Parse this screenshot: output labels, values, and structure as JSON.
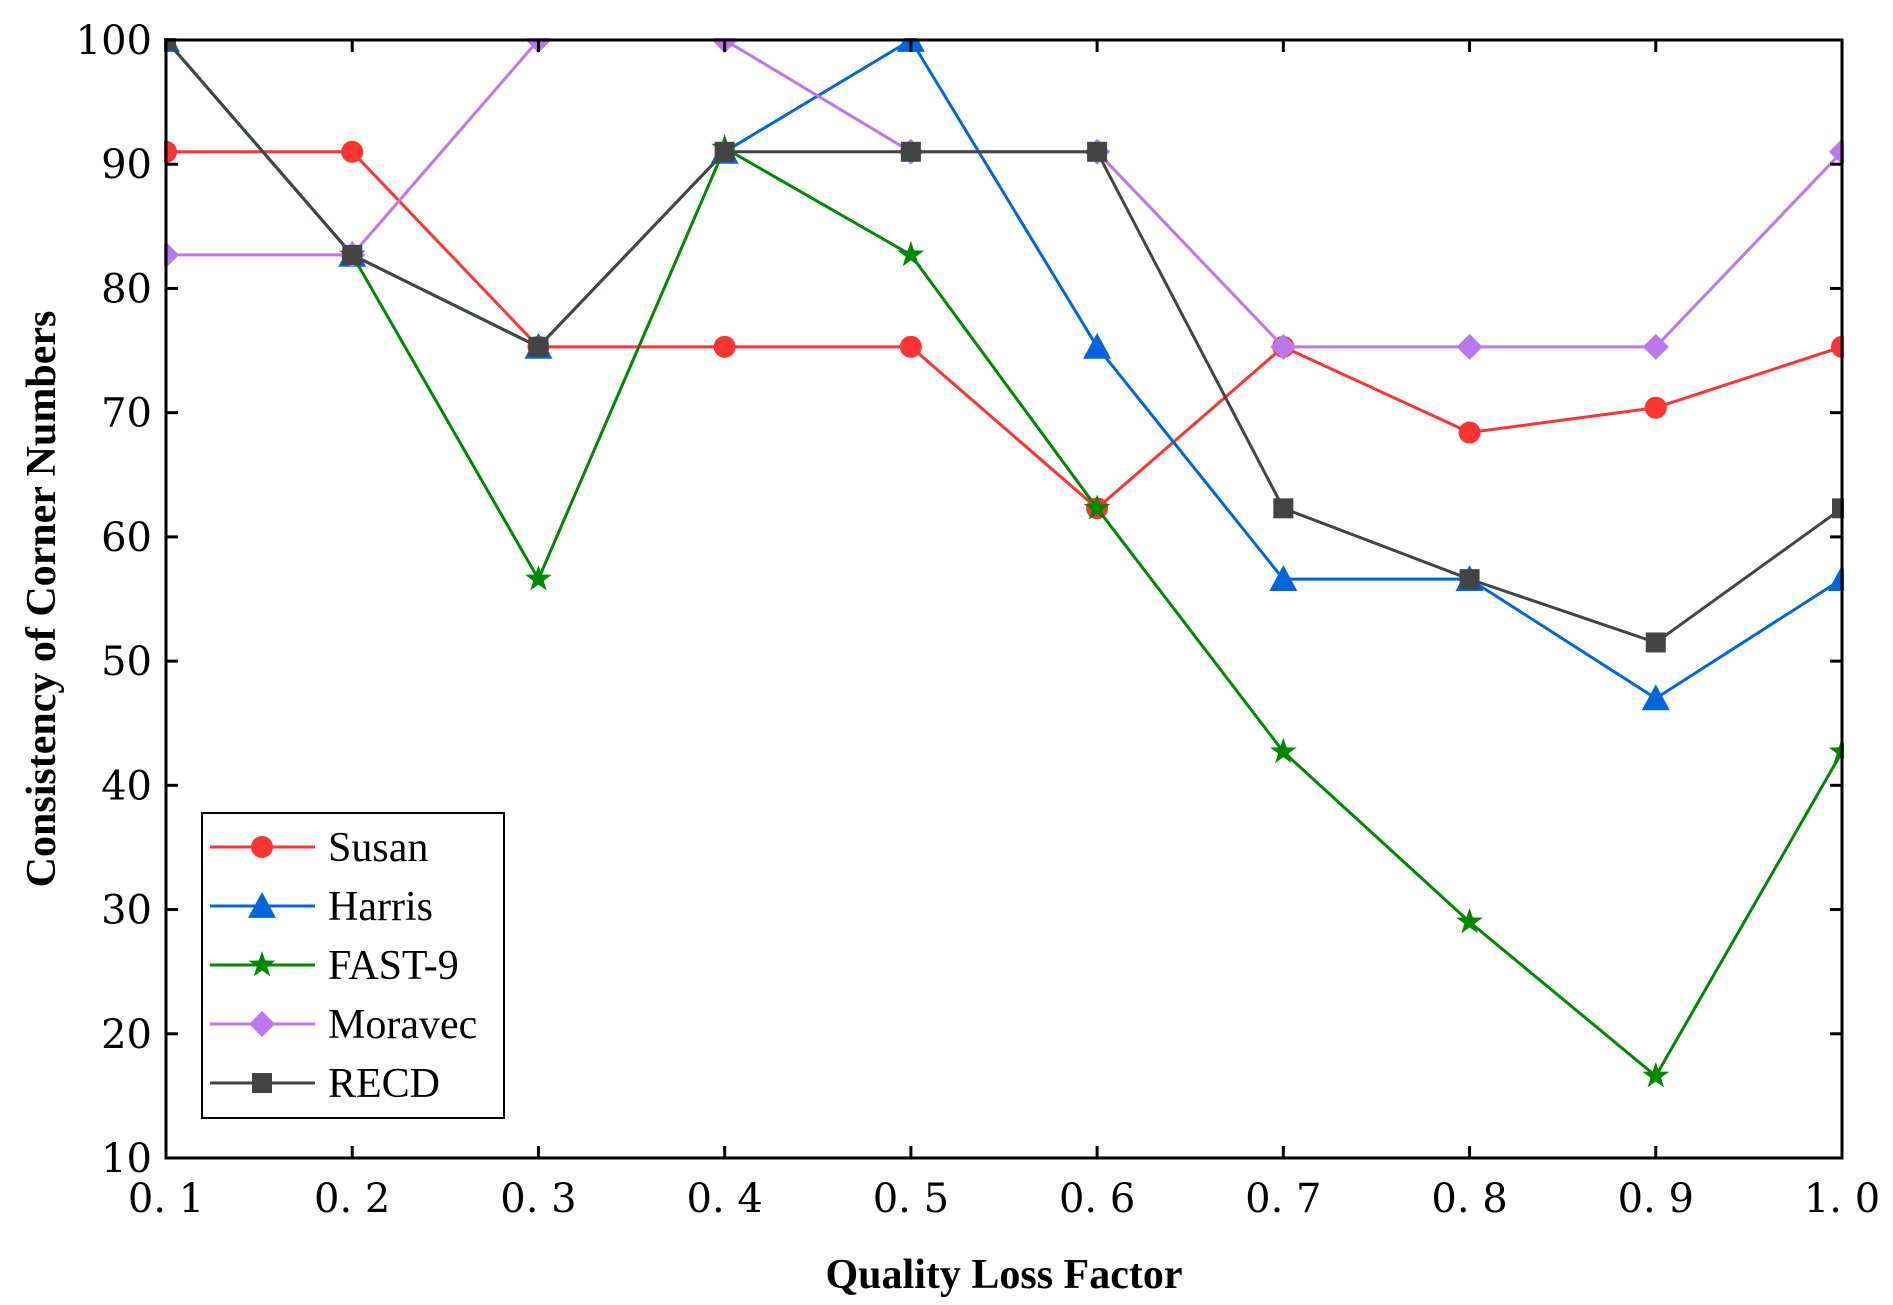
{
  "chart_data": {
    "type": "line",
    "title": "",
    "xlabel": "Quality Loss Factor",
    "ylabel": "Consistency of Corner Numbers",
    "x": [
      0.1,
      0.2,
      0.3,
      0.4,
      0.5,
      0.6,
      0.7,
      0.8,
      0.9,
      1.0
    ],
    "xtick_labels": [
      "0. 1",
      "0. 2",
      "0. 3",
      "0. 4",
      "0. 5",
      "0. 6",
      "0. 7",
      "0. 8",
      "0. 9",
      "1. 0"
    ],
    "xlim": [
      0.1,
      1.0
    ],
    "ylim": [
      10,
      100
    ],
    "yticks": [
      10,
      20,
      30,
      40,
      50,
      60,
      70,
      80,
      90,
      100
    ],
    "grid": false,
    "legend_position": "bottom-left",
    "series": [
      {
        "name": "Susan",
        "color": "#ff3333",
        "marker": "circle",
        "values": [
          91.0,
          91.0,
          75.3,
          75.3,
          75.3,
          62.3,
          75.3,
          68.4,
          70.4,
          75.3
        ]
      },
      {
        "name": "Harris",
        "color": "#0066dd",
        "marker": "triangle",
        "values": [
          100.0,
          82.7,
          75.3,
          91.0,
          100.0,
          75.3,
          56.6,
          56.6,
          47.0,
          56.6
        ]
      },
      {
        "name": "FAST-9",
        "color": "#008800",
        "marker": "star",
        "values": [
          100.0,
          82.7,
          56.6,
          91.3,
          82.7,
          62.3,
          42.7,
          29.0,
          16.6,
          42.7
        ]
      },
      {
        "name": "Moravec",
        "color": "#bb77ee",
        "marker": "diamond",
        "values": [
          82.7,
          82.7,
          100.0,
          100.0,
          91.0,
          91.0,
          75.3,
          75.3,
          75.3,
          91.0
        ]
      },
      {
        "name": "RECD",
        "color": "#444444",
        "marker": "square",
        "values": [
          100.0,
          82.7,
          75.3,
          91.0,
          91.0,
          91.0,
          62.3,
          56.6,
          51.5,
          62.3
        ]
      }
    ]
  }
}
